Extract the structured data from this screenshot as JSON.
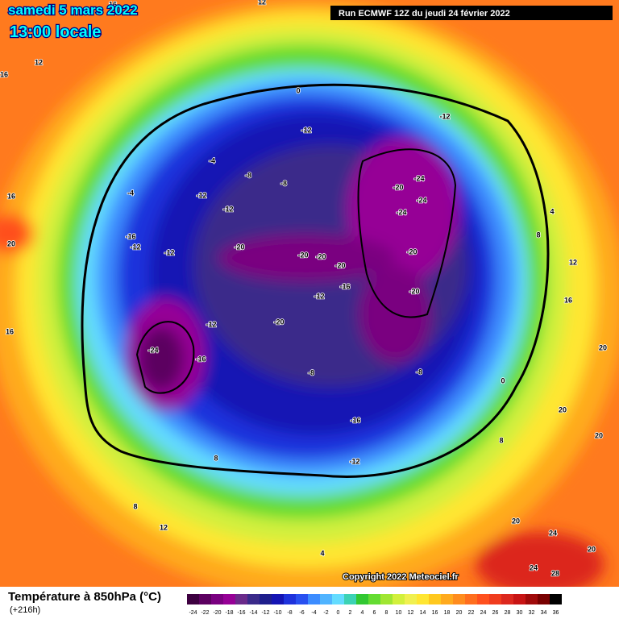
{
  "header": {
    "date": "samedi 5 mars 2022",
    "time": "13:00 locale",
    "run": "Run ECMWF 12Z du jeudi 24 février 2022"
  },
  "copyright": "Copyright 2022 Meteociel.fr",
  "legend": {
    "title": "Température à 850hPa (°C)",
    "subtitle": "(+216h)",
    "scale": [
      -24,
      -22,
      -20,
      -18,
      -16,
      -14,
      -12,
      -10,
      -8,
      -6,
      -4,
      -2,
      0,
      2,
      4,
      6,
      8,
      10,
      12,
      14,
      16,
      18,
      20,
      22,
      24,
      26,
      28,
      30,
      32,
      34,
      36
    ],
    "colors": [
      "#3d0040",
      "#5c0060",
      "#7a0080",
      "#960096",
      "#6a2a8a",
      "#3a2a8a",
      "#1e1e8c",
      "#1414b4",
      "#1e32dc",
      "#2850f0",
      "#3c8cff",
      "#50b4ff",
      "#64dcff",
      "#3cd2b4",
      "#32c832",
      "#64dc32",
      "#a0e632",
      "#d2f03c",
      "#f0f050",
      "#ffe632",
      "#ffc81e",
      "#ffaa1e",
      "#ff8c1e",
      "#ff6e1e",
      "#ff501e",
      "#f03c1e",
      "#dc281e",
      "#c81414",
      "#a00a0a",
      "#780000",
      "#000000"
    ]
  },
  "contour_labels": [
    "16",
    "12",
    "12",
    "16",
    "0",
    "-12",
    "-12",
    "-4",
    "-8",
    "-8",
    "-24",
    "-20",
    "-24",
    "-24",
    "-4",
    "-12",
    "-12",
    "-16",
    "-12",
    "-12",
    "-20",
    "-20",
    "-20",
    "-20",
    "-20",
    "-16",
    "-20",
    "-12",
    "-20",
    "-24",
    "-16",
    "-12",
    "-8",
    "-8",
    "-16",
    "-12",
    "16",
    "20",
    "16",
    "4",
    "8",
    "12",
    "16",
    "20",
    "20",
    "20",
    "20",
    "24",
    "20",
    "24",
    "28",
    "8",
    "12",
    "4",
    "8",
    "0",
    "8"
  ]
}
